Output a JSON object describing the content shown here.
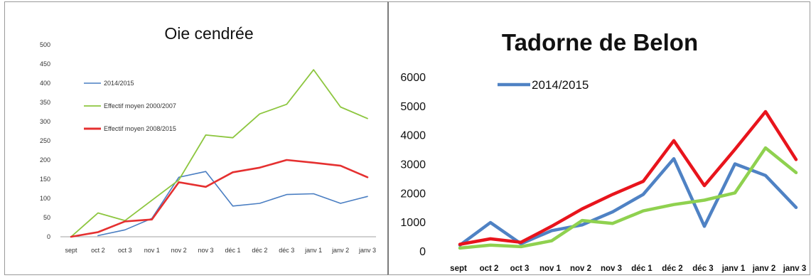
{
  "chart_data": [
    {
      "type": "line",
      "title": "Oie cendrée",
      "categories": [
        "sept",
        "oct 2",
        "oct 3",
        "nov 1",
        "nov 2",
        "nov 3",
        "déc 1",
        "déc 2",
        "déc 3",
        "janv 1",
        "janv 2",
        "janv 3"
      ],
      "ylim": [
        0,
        500
      ],
      "yticks": [
        "0",
        "50",
        "100",
        "150",
        "200",
        "250",
        "300",
        "350",
        "400",
        "450",
        "500"
      ],
      "grid": false,
      "legend_position": "top-left",
      "series": [
        {
          "name": "2014/2015",
          "color": "#4a7ec2",
          "values": [
            null,
            3,
            18,
            48,
            155,
            170,
            80,
            87,
            110,
            112,
            87,
            105
          ]
        },
        {
          "name": "Effectif moyen 2000/2007",
          "color": "#8dc63f",
          "values": [
            0,
            62,
            42,
            95,
            148,
            265,
            258,
            320,
            345,
            435,
            338,
            308
          ]
        },
        {
          "name": "Effectif moyen 2008/2015",
          "color": "#e53030",
          "values": [
            0,
            12,
            40,
            45,
            142,
            130,
            168,
            180,
            200,
            193,
            185,
            155
          ]
        }
      ]
    },
    {
      "type": "line",
      "title": "Tadorne de Belon",
      "categories": [
        "sept",
        "oct 2",
        "oct 3",
        "nov 1",
        "nov 2",
        "nov 3",
        "déc 1",
        "déc 2",
        "déc 3",
        "janv 1",
        "janv 2",
        "janv 3"
      ],
      "ylim": [
        0,
        6000
      ],
      "yticks": [
        "0",
        "1000",
        "2000",
        "3000",
        "4000",
        "5000",
        "6000"
      ],
      "grid": false,
      "legend_position": "top-left",
      "series": [
        {
          "name": "2014/2015",
          "color": "#4f82c4",
          "values": [
            200,
            980,
            250,
            700,
            900,
            1350,
            1950,
            3180,
            850,
            3000,
            2600,
            1500
          ]
        },
        {
          "color": "#e8141c",
          "values": [
            230,
            420,
            300,
            850,
            1450,
            1950,
            2400,
            3800,
            2250,
            3500,
            4800,
            3150
          ]
        },
        {
          "color": "#8fd14f",
          "values": [
            100,
            200,
            150,
            350,
            1050,
            950,
            1380,
            1600,
            1750,
            2000,
            3550,
            2700
          ]
        }
      ]
    }
  ]
}
